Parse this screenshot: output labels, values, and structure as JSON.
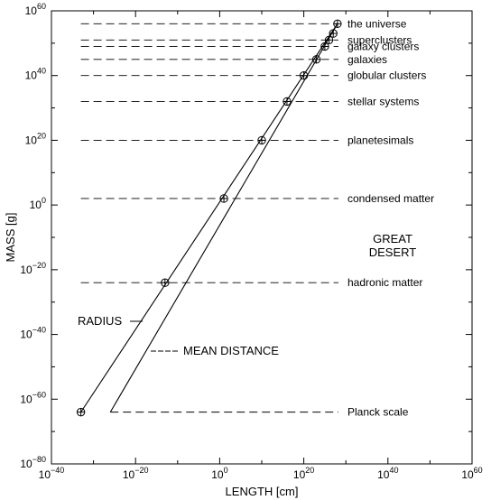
{
  "chart_data": {
    "type": "line",
    "title": "",
    "xlabel": "LENGTH [cm]",
    "ylabel": "MASS [g]",
    "x_scale": "log10",
    "y_scale": "log10",
    "xlim_log10": [
      -40,
      60
    ],
    "ylim_log10": [
      -80,
      60
    ],
    "x_ticks": [
      {
        "log": -40,
        "base": "10",
        "exp": "−40"
      },
      {
        "log": -20,
        "base": "10",
        "exp": "−20"
      },
      {
        "log": 0,
        "base": "10",
        "exp": "0"
      },
      {
        "log": 20,
        "base": "10",
        "exp": "20"
      },
      {
        "log": 40,
        "base": "10",
        "exp": "40"
      },
      {
        "log": 60,
        "base": "10",
        "exp": "60"
      }
    ],
    "y_ticks": [
      {
        "log": -80,
        "base": "10",
        "exp": "−80"
      },
      {
        "log": -60,
        "base": "10",
        "exp": "−60"
      },
      {
        "log": -40,
        "base": "10",
        "exp": "−40"
      },
      {
        "log": -20,
        "base": "10",
        "exp": "−20"
      },
      {
        "log": 0,
        "base": "10",
        "exp": "0"
      },
      {
        "log": 20,
        "base": "10",
        "exp": "20"
      },
      {
        "log": 40,
        "base": "10",
        "exp": "40"
      },
      {
        "log": 60,
        "base": "10",
        "exp": "60"
      }
    ],
    "grid": false,
    "series": [
      {
        "name": "RADIUS",
        "x_log10": [
          -33,
          54
        ],
        "y_log10": [
          -5,
          56
        ],
        "markers": [
          {
            "x_log10": -33,
            "y_log10": -64
          },
          {
            "x_log10": -13,
            "y_log10": -24
          },
          {
            "x_log10": 1,
            "y_log10": 2
          },
          {
            "x_log10": 10,
            "y_log10": 20
          },
          {
            "x_log10": 16,
            "y_log10": 32
          },
          {
            "x_log10": 20,
            "y_log10": 40
          },
          {
            "x_log10": 23,
            "y_log10": 45
          },
          {
            "x_log10": 25,
            "y_log10": 49
          },
          {
            "x_log10": 26,
            "y_log10": 51
          },
          {
            "x_log10": 27,
            "y_log10": 53
          },
          {
            "x_log10": 28,
            "y_log10": 56
          }
        ]
      },
      {
        "name": "MEAN DISTANCE",
        "x_log10": [
          -26,
          28
        ],
        "y_log10": [
          -64,
          56
        ]
      }
    ],
    "levels": [
      {
        "label": "the universe",
        "y_log10": 56,
        "x_start_log10": -33
      },
      {
        "label": "superclusters",
        "y_log10": 51,
        "x_start_log10": -33
      },
      {
        "label": "galaxy clusters",
        "y_log10": 49,
        "x_start_log10": -33
      },
      {
        "label": "galaxies",
        "y_log10": 45,
        "x_start_log10": -33
      },
      {
        "label": "globular clusters",
        "y_log10": 40,
        "x_start_log10": -33
      },
      {
        "label": "stellar systems",
        "y_log10": 32,
        "x_start_log10": -33
      },
      {
        "label": "planetesimals",
        "y_log10": 20,
        "x_start_log10": -33
      },
      {
        "label": "condensed matter",
        "y_log10": 2,
        "x_start_log10": -33
      },
      {
        "label": "hadronic matter",
        "y_log10": -24,
        "x_start_log10": -33
      },
      {
        "label": "Planck scale",
        "y_log10": -64,
        "x_start_log10": -26
      }
    ],
    "annotations": {
      "desert_line1": "GREAT",
      "desert_line2": "DESERT",
      "radius_label": "RADIUS",
      "mean_distance_label": "MEAN DISTANCE"
    }
  }
}
